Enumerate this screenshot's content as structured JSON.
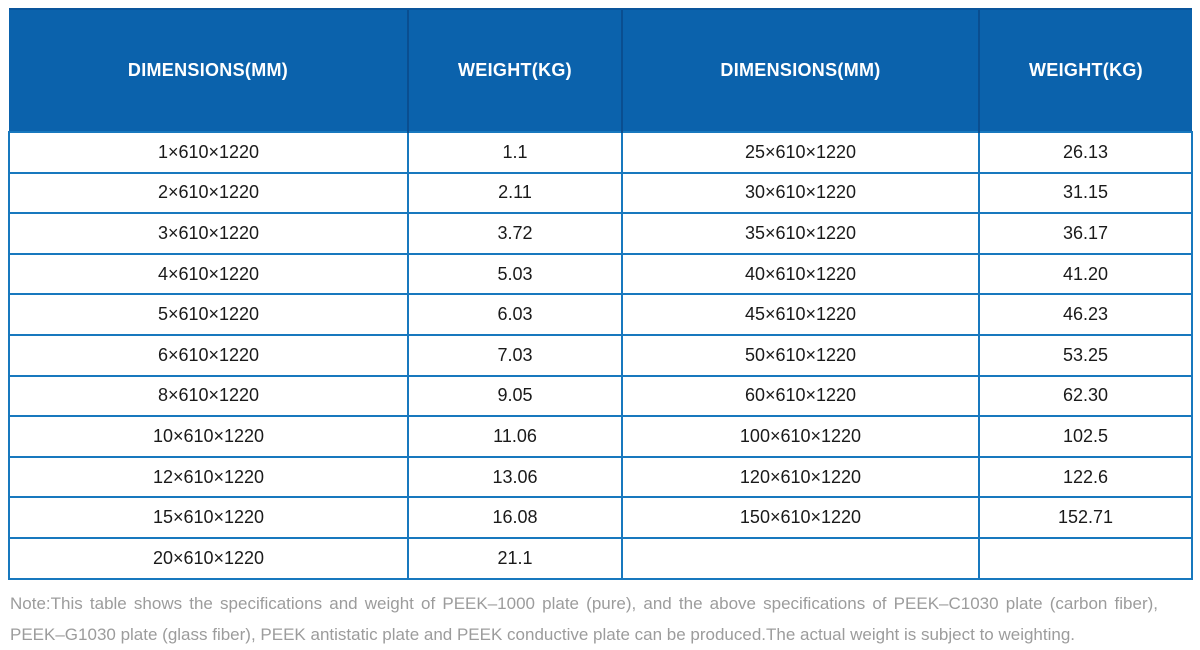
{
  "chart_data": {
    "type": "table",
    "title": "",
    "headers": [
      "DIMENSIONS(MM)",
      "WEIGHT(KG)",
      "DIMENSIONS(MM)",
      "WEIGHT(KG)"
    ],
    "rows": [
      [
        "1×610×1220",
        "1.1",
        "25×610×1220",
        "26.13"
      ],
      [
        "2×610×1220",
        "2.11",
        "30×610×1220",
        "31.15"
      ],
      [
        "3×610×1220",
        "3.72",
        "35×610×1220",
        "36.17"
      ],
      [
        "4×610×1220",
        "5.03",
        "40×610×1220",
        "41.20"
      ],
      [
        "5×610×1220",
        "6.03",
        "45×610×1220",
        "46.23"
      ],
      [
        "6×610×1220",
        "7.03",
        "50×610×1220",
        "53.25"
      ],
      [
        "8×610×1220",
        "9.05",
        "60×610×1220",
        "62.30"
      ],
      [
        "10×610×1220",
        "11.06",
        "100×610×1220",
        "102.5"
      ],
      [
        "12×610×1220",
        "13.06",
        "120×610×1220",
        "122.6"
      ],
      [
        "15×610×1220",
        "16.08",
        "150×610×1220",
        "152.71"
      ],
      [
        "20×610×1220",
        "21.1",
        "",
        ""
      ]
    ]
  },
  "note": {
    "line1": "Note:This table shows the specifications and weight of PEEK–1000 plate (pure), and the above specifications of PEEK–C1030 plate (carbon fiber),",
    "line2": "PEEK–G1030 plate (glass fiber), PEEK antistatic plate and PEEK conductive plate can be produced.The actual weight is subject to weighting."
  },
  "colors": {
    "header_background": "#0b62ac",
    "header_divider": "#0a4e90",
    "grid_border": "#1878be",
    "header_text": "#ffffff",
    "cell_text": "#1a1a1a",
    "note_text": "#9c9c9c"
  }
}
